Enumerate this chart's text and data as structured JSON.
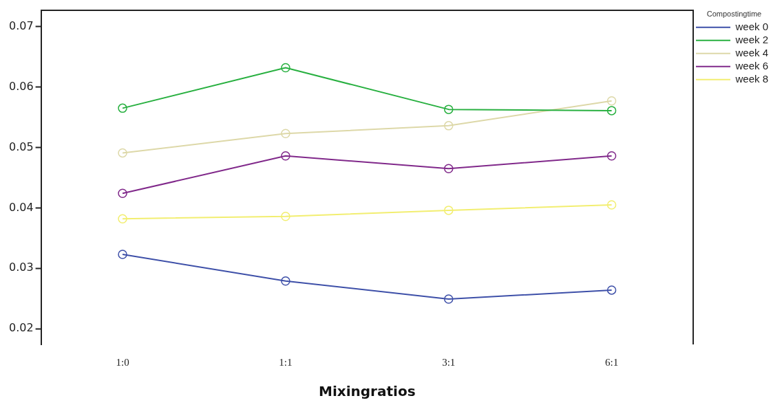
{
  "chart_data": {
    "type": "line",
    "xlabel": "Mixingratios",
    "legend_title": "Compostingtime",
    "categories": [
      "1:0",
      "1:1",
      "3:1",
      "6:1"
    ],
    "series": [
      {
        "name": "week 0",
        "color": "#3d4fa8",
        "values": [
          0.0323,
          0.0279,
          0.0249,
          0.0264
        ]
      },
      {
        "name": "week 2",
        "color": "#28b040",
        "values": [
          0.0565,
          0.0632,
          0.0563,
          0.0561
        ]
      },
      {
        "name": "week 4",
        "color": "#ddd8a8",
        "values": [
          0.0491,
          0.0523,
          0.0536,
          0.0577
        ]
      },
      {
        "name": "week 6",
        "color": "#80288a",
        "values": [
          0.0424,
          0.0486,
          0.0465,
          0.0486
        ]
      },
      {
        "name": "week 8",
        "color": "#f2ee70",
        "values": [
          0.0382,
          0.0386,
          0.0396,
          0.0405
        ]
      }
    ],
    "ylim": [
      0.0174,
      0.0727
    ],
    "yticks": [
      0.02,
      0.03,
      0.04,
      0.05,
      0.06,
      0.07
    ],
    "grid": false,
    "legend": "top right",
    "marker": "circle",
    "line_style": "solid"
  }
}
